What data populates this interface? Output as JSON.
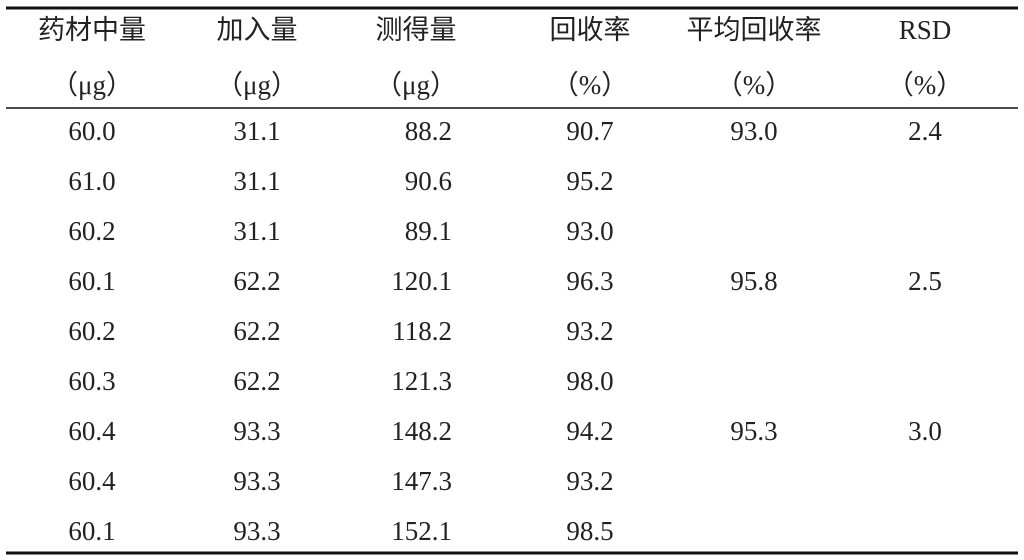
{
  "table": {
    "header": [
      "药材中量",
      "加入量",
      "测得量",
      "回收率",
      "平均回收率",
      "RSD"
    ],
    "units": [
      "（μg）",
      "（μg）",
      "（μg）",
      "（%）",
      "（%）",
      "（%）"
    ],
    "groups": [
      {
        "rows": [
          [
            "60.0",
            "31.1",
            "88.2",
            "90.7"
          ],
          [
            "61.0",
            "31.1",
            "90.6",
            "95.2"
          ],
          [
            "60.2",
            "31.1",
            "89.1",
            "93.0"
          ]
        ],
        "mean": "93.0",
        "rsd": "2.4"
      },
      {
        "rows": [
          [
            "60.1",
            "62.2",
            "120.1",
            "96.3"
          ],
          [
            "60.2",
            "62.2",
            "118.2",
            "93.2"
          ],
          [
            "60.3",
            "62.2",
            "121.3",
            "98.0"
          ]
        ],
        "mean": "95.8",
        "rsd": "2.5"
      },
      {
        "rows": [
          [
            "60.4",
            "93.3",
            "148.2",
            "94.2"
          ],
          [
            "60.4",
            "93.3",
            "147.3",
            "93.2"
          ],
          [
            "60.1",
            "93.3",
            "152.1",
            "98.5"
          ]
        ],
        "mean": "95.3",
        "rsd": "3.0"
      }
    ]
  }
}
